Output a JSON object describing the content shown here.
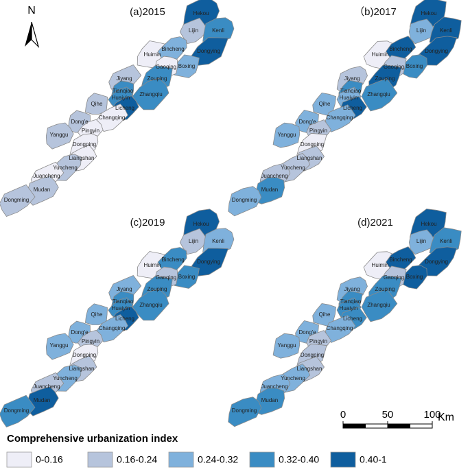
{
  "north": "N",
  "regions": [
    "Hekou",
    "Lijin",
    "Kenli",
    "Huimin",
    "Bincheng",
    "Dongying",
    "Boxing",
    "Gaoqing",
    "Jiyang",
    "Zouping",
    "Tianqiao",
    "Huaiyin",
    "Zhangqiu",
    "Licheng",
    "Qihe",
    "Changqing",
    "Dong'e",
    "Pingyin",
    "Yanggu",
    "Dongping",
    "Liangshan",
    "Yuncheng",
    "Juancheng",
    "Mudan",
    "Dongming"
  ],
  "panels": [
    {
      "title": "(a)2015",
      "classes": [
        4,
        1,
        3,
        0,
        2,
        4,
        2,
        0,
        1,
        3,
        3,
        3,
        3,
        4,
        1,
        0,
        1,
        0,
        1,
        0,
        0,
        1,
        0,
        1,
        1
      ]
    },
    {
      "title": "（b)2017",
      "classes": [
        4,
        2,
        4,
        0,
        4,
        4,
        3,
        1,
        1,
        4,
        3,
        2,
        3,
        4,
        2,
        2,
        2,
        1,
        2,
        0,
        1,
        1,
        1,
        3,
        2
      ]
    },
    {
      "title": "(c)2019",
      "classes": [
        4,
        1,
        2,
        0,
        3,
        4,
        3,
        1,
        2,
        3,
        3,
        3,
        3,
        4,
        2,
        2,
        2,
        1,
        2,
        0,
        1,
        2,
        1,
        4,
        3
      ]
    },
    {
      "title": "(d)2021",
      "classes": [
        4,
        2,
        3,
        0,
        4,
        4,
        4,
        1,
        2,
        3,
        3,
        3,
        3,
        3,
        2,
        2,
        2,
        1,
        2,
        1,
        1,
        2,
        2,
        3,
        3
      ]
    }
  ],
  "legend": {
    "title": "Comprehensive urbanization index",
    "classes": [
      {
        "label": "0-0.16",
        "color": "#eeeef7"
      },
      {
        "label": "0.16-0.24",
        "color": "#b6c4dc"
      },
      {
        "label": "0.24-0.32",
        "color": "#7fb1dc"
      },
      {
        "label": "0.32-0.40",
        "color": "#3a8cc3"
      },
      {
        "label": "0.40-1",
        "color": "#0f5e9e"
      }
    ]
  },
  "scale_bar": {
    "ticks": [
      0,
      50,
      100
    ],
    "unit": "Km"
  }
}
